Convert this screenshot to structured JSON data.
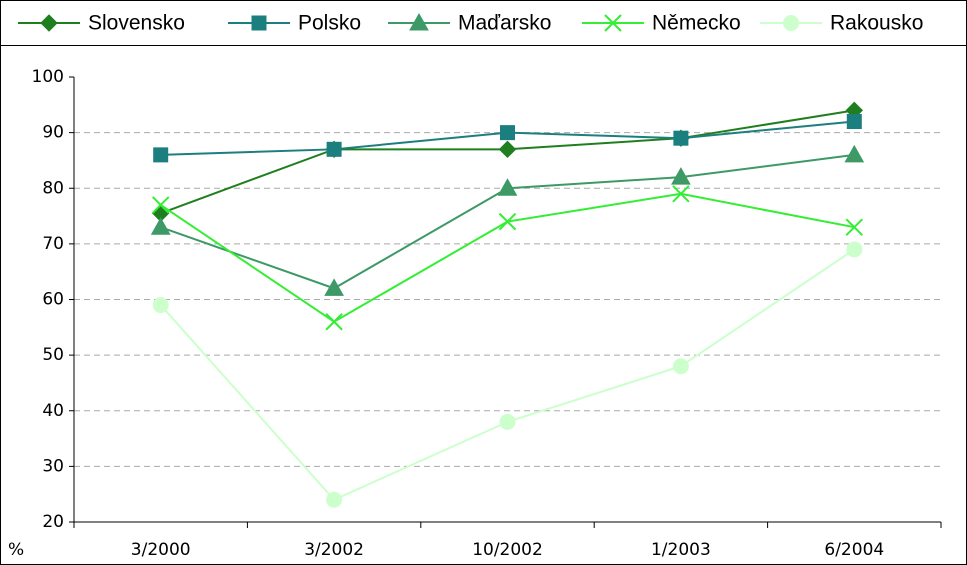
{
  "chart_data": {
    "type": "line",
    "y_label": "%",
    "categories": [
      "3/2000",
      "3/2002",
      "10/2002",
      "1/2003",
      "6/2004"
    ],
    "series": [
      {
        "name": "Slovensko",
        "color": "#1f7f1f",
        "marker": "diamond",
        "values": [
          75.5,
          87,
          87,
          89,
          94
        ]
      },
      {
        "name": "Polsko",
        "color": "#1c7f7f",
        "marker": "square",
        "values": [
          86,
          87,
          90,
          89,
          92
        ]
      },
      {
        "name": "Maďarsko",
        "color": "#3d9966",
        "marker": "triangle",
        "values": [
          73,
          62,
          80,
          82,
          86
        ]
      },
      {
        "name": "Německo",
        "color": "#33ee33",
        "marker": "x",
        "values": [
          77,
          56,
          74,
          79,
          73
        ]
      },
      {
        "name": "Rakousko",
        "color": "#ccffcc",
        "marker": "circle",
        "values": [
          59,
          24,
          38,
          48,
          69
        ]
      }
    ],
    "ylim": [
      20,
      100
    ],
    "yticks": [
      20,
      30,
      40,
      50,
      60,
      70,
      80,
      90,
      100
    ],
    "grid": true,
    "legend": "top"
  }
}
